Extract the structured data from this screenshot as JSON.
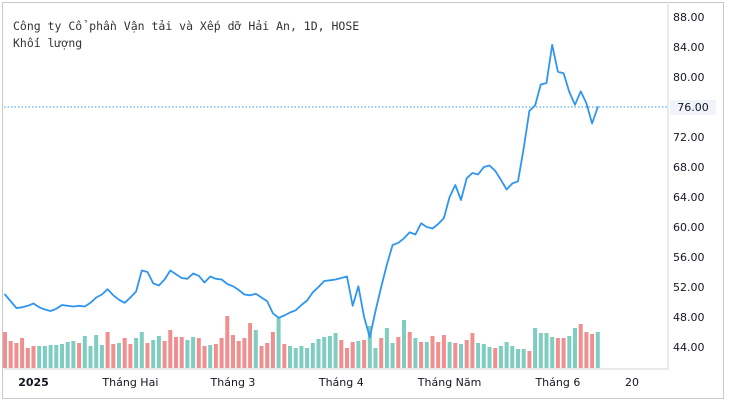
{
  "chart_data": {
    "type": "line",
    "title": "Công ty Cổ phần Vận tải và Xếp dỡ Hải An, 1D, HOSE",
    "subtitle": "Khối lượng",
    "last_price": "76.00",
    "colors": {
      "line": "#2f96f0",
      "up_volume": "#7fcdc0",
      "down_volume": "#ef8f8f",
      "last_price_line": "#2f96f0",
      "axis_text": "#131722"
    },
    "ylim": [
      40,
      88
    ],
    "y_ticks": [
      "88.00",
      "84.00",
      "80.00",
      "76.00",
      "72.00",
      "68.00",
      "64.00",
      "60.00",
      "56.00",
      "52.00",
      "48.00",
      "44.00"
    ],
    "y_tick_values": [
      88,
      84,
      80,
      76,
      72,
      68,
      64,
      60,
      56,
      52,
      48,
      44
    ],
    "x_ticks": [
      "2025",
      "Tháng Hai",
      "Tháng 3",
      "Tháng 4",
      "Tháng Năm",
      "Tháng 6",
      "20"
    ],
    "x_tick_index": [
      5,
      22,
      40,
      59,
      78,
      97,
      110
    ],
    "x_range": [
      0,
      111
    ],
    "price": [
      51.0,
      50.1,
      49.2,
      49.3,
      49.5,
      49.8,
      49.3,
      49.0,
      48.8,
      49.1,
      49.6,
      49.5,
      49.4,
      49.5,
      49.4,
      49.9,
      50.6,
      51.0,
      51.7,
      50.9,
      50.3,
      49.9,
      50.6,
      51.4,
      54.2,
      54.0,
      52.5,
      52.2,
      53.0,
      54.2,
      53.7,
      53.2,
      53.1,
      53.8,
      53.5,
      52.6,
      53.4,
      53.1,
      53.0,
      52.4,
      52.1,
      51.6,
      51.0,
      50.9,
      51.1,
      50.6,
      50.1,
      48.5,
      47.9,
      48.2,
      48.6,
      48.9,
      49.6,
      50.2,
      51.3,
      52.0,
      52.8,
      52.9,
      53.0,
      53.2,
      53.4,
      49.5,
      52.1,
      48.0,
      45.3,
      48.8,
      52.0,
      55.0,
      57.6,
      57.9,
      58.5,
      59.3,
      59.0,
      60.5,
      60.0,
      59.8,
      60.4,
      61.2,
      64.0,
      65.6,
      63.6,
      66.5,
      67.2,
      67.0,
      68.0,
      68.2,
      67.5,
      66.3,
      65.0,
      65.8,
      66.1,
      70.5,
      75.5,
      76.2,
      79.0,
      79.2,
      84.3,
      80.7,
      80.5,
      78.0,
      76.3,
      78.1,
      76.5,
      73.8,
      76.0
    ],
    "volume_up": [
      false,
      false,
      false,
      false,
      false,
      false,
      true,
      true,
      true,
      true,
      true,
      true,
      true,
      false,
      true,
      true,
      true,
      true,
      false,
      false,
      true,
      false,
      false,
      true,
      true,
      false,
      true,
      true,
      false,
      false,
      false,
      false,
      true,
      true,
      false,
      false,
      true,
      false,
      false,
      false,
      false,
      false,
      false,
      false,
      true,
      false,
      false,
      false,
      true,
      false,
      true,
      true,
      true,
      true,
      true,
      true,
      true,
      true,
      true,
      false,
      false,
      false,
      true,
      false,
      true,
      true,
      false,
      true,
      true,
      false,
      true,
      false,
      true,
      false,
      true,
      false,
      false,
      false,
      true,
      false,
      true,
      false,
      false,
      true,
      true,
      true,
      false,
      true,
      true,
      true,
      true,
      true,
      false,
      true,
      true,
      true,
      true,
      false,
      false,
      true,
      true,
      false,
      false,
      false,
      true
    ],
    "volume": [
      36,
      27,
      25,
      30,
      20,
      22,
      22,
      22,
      23,
      23,
      24,
      26,
      27,
      25,
      32,
      22,
      33,
      23,
      36,
      24,
      25,
      30,
      24,
      30,
      36,
      25,
      28,
      32,
      27,
      38,
      31,
      31,
      28,
      31,
      30,
      22,
      23,
      24,
      30,
      52,
      33,
      27,
      30,
      45,
      38,
      22,
      25,
      36,
      50,
      24,
      22,
      20,
      22,
      20,
      25,
      29,
      31,
      32,
      35,
      28,
      20,
      26,
      27,
      28,
      42,
      20,
      30,
      40,
      25,
      31,
      48,
      36,
      30,
      26,
      26,
      32,
      26,
      33,
      26,
      25,
      24,
      28,
      35,
      25,
      24,
      21,
      20,
      22,
      26,
      22,
      19,
      19,
      17,
      40,
      35,
      35,
      31,
      30,
      30,
      32,
      40,
      44,
      36,
      34,
      36
    ]
  }
}
